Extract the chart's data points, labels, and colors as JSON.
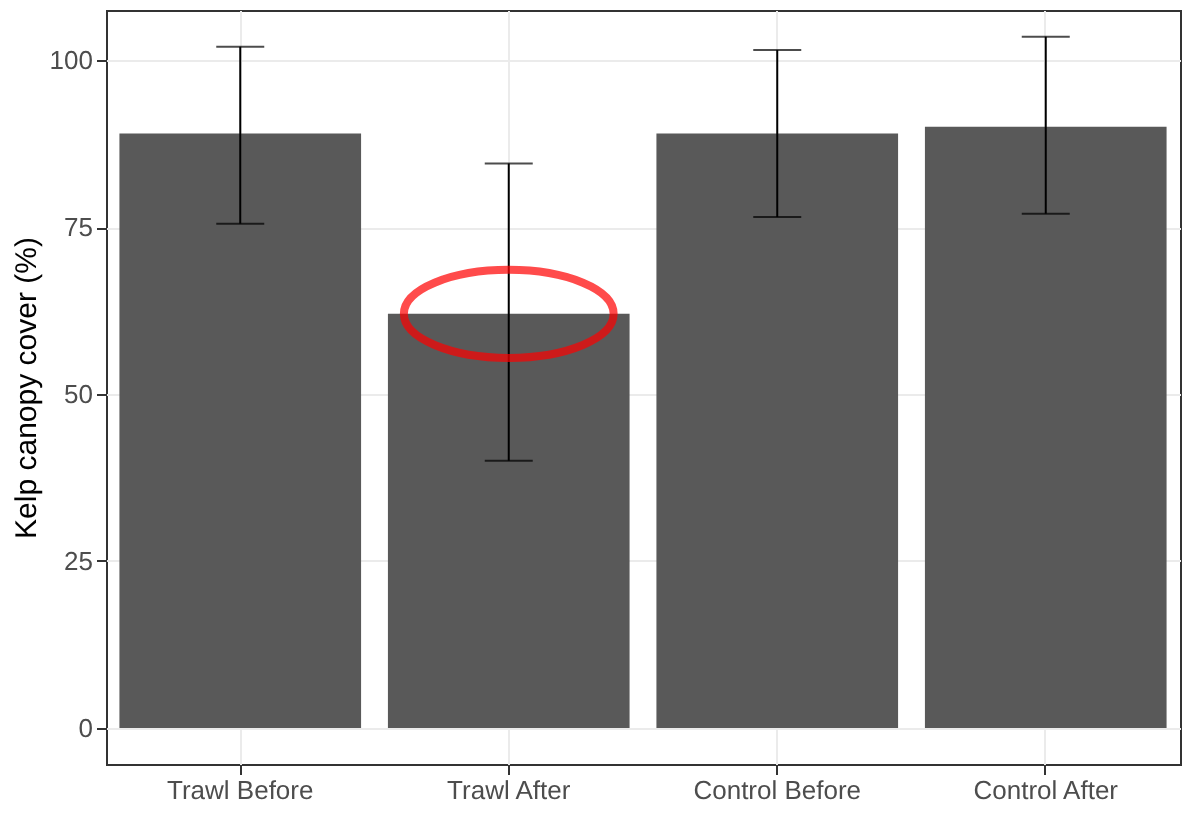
{
  "chart_data": {
    "type": "bar",
    "ylabel": "Kelp canopy cover (%)",
    "categories": [
      "Trawl Before",
      "Trawl After",
      "Control Before",
      "Control After"
    ],
    "values": [
      89,
      62,
      89,
      90
    ],
    "errors": [
      [
        75.5,
        102
      ],
      [
        40,
        84.5
      ],
      [
        76.5,
        101.5
      ],
      [
        77,
        103.5
      ]
    ],
    "color": "#595959",
    "ylim": [
      -5.4,
      107.5
    ],
    "yticks": [
      0,
      25,
      50,
      75,
      100
    ],
    "grid": true
  }
}
